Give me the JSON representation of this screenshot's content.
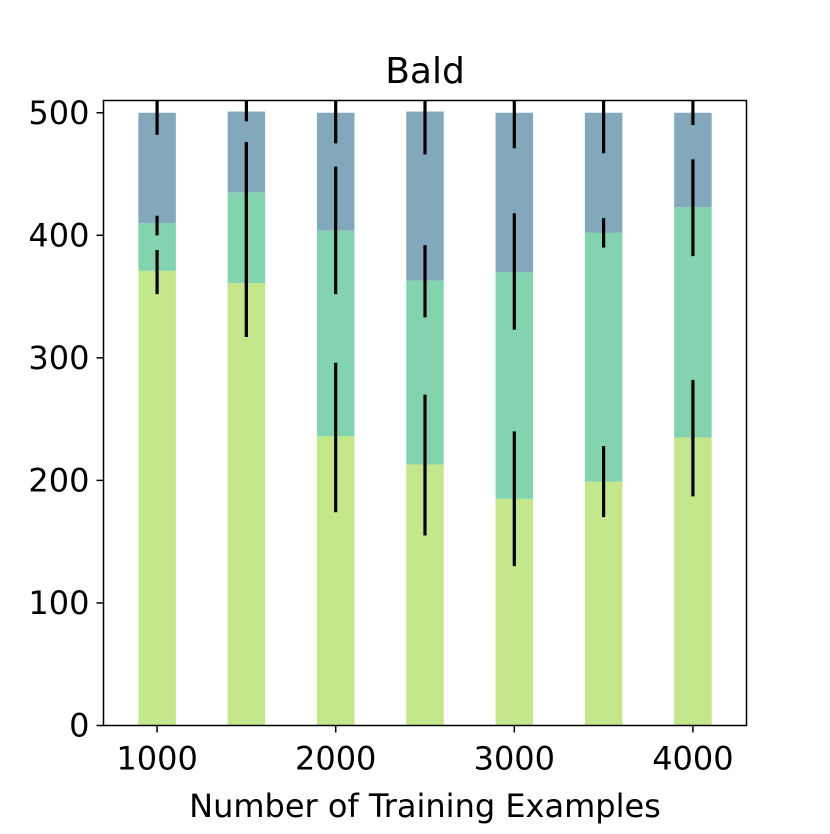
{
  "chart_data": {
    "type": "bar",
    "stacked": true,
    "title": "Bald",
    "xlabel": "Number of Training Examples",
    "ylabel": "",
    "x": [
      1000,
      1500,
      2000,
      2500,
      3000,
      3500,
      4000
    ],
    "x_ticks": [
      1000,
      2000,
      3000,
      4000
    ],
    "x_tick_labels": [
      "1000",
      "2000",
      "3000",
      "4000"
    ],
    "xlim": [
      700,
      4300
    ],
    "ylim": [
      0,
      510
    ],
    "y_ticks": [
      0,
      100,
      200,
      300,
      400,
      500
    ],
    "y_tick_labels": [
      "0",
      "100",
      "200",
      "300",
      "400",
      "500"
    ],
    "bar_width": 210,
    "legend": "none",
    "grid": false,
    "series": [
      {
        "color": "#c5e78c",
        "values": [
          371,
          361,
          236,
          213,
          185,
          199,
          235
        ],
        "error_low": [
          352,
          317,
          174,
          155,
          130,
          170,
          187
        ],
        "error_high": [
          388,
          476,
          296,
          270,
          240,
          228,
          282
        ]
      },
      {
        "color": "#83d3ae",
        "values": [
          39,
          74,
          168,
          150,
          185,
          203,
          188
        ],
        "error_low": [
          400,
          317,
          352,
          333,
          323,
          390,
          383
        ],
        "error_high": [
          416,
          476,
          456,
          392,
          418,
          414,
          462
        ]
      },
      {
        "color": "#84a8bb",
        "values": [
          90,
          66,
          96,
          138,
          130,
          98,
          77
        ],
        "error_low": [
          482,
          493,
          475,
          466,
          471,
          467,
          490
        ],
        "error_high": [
          510,
          510,
          510,
          510,
          510,
          510,
          510
        ]
      }
    ]
  }
}
